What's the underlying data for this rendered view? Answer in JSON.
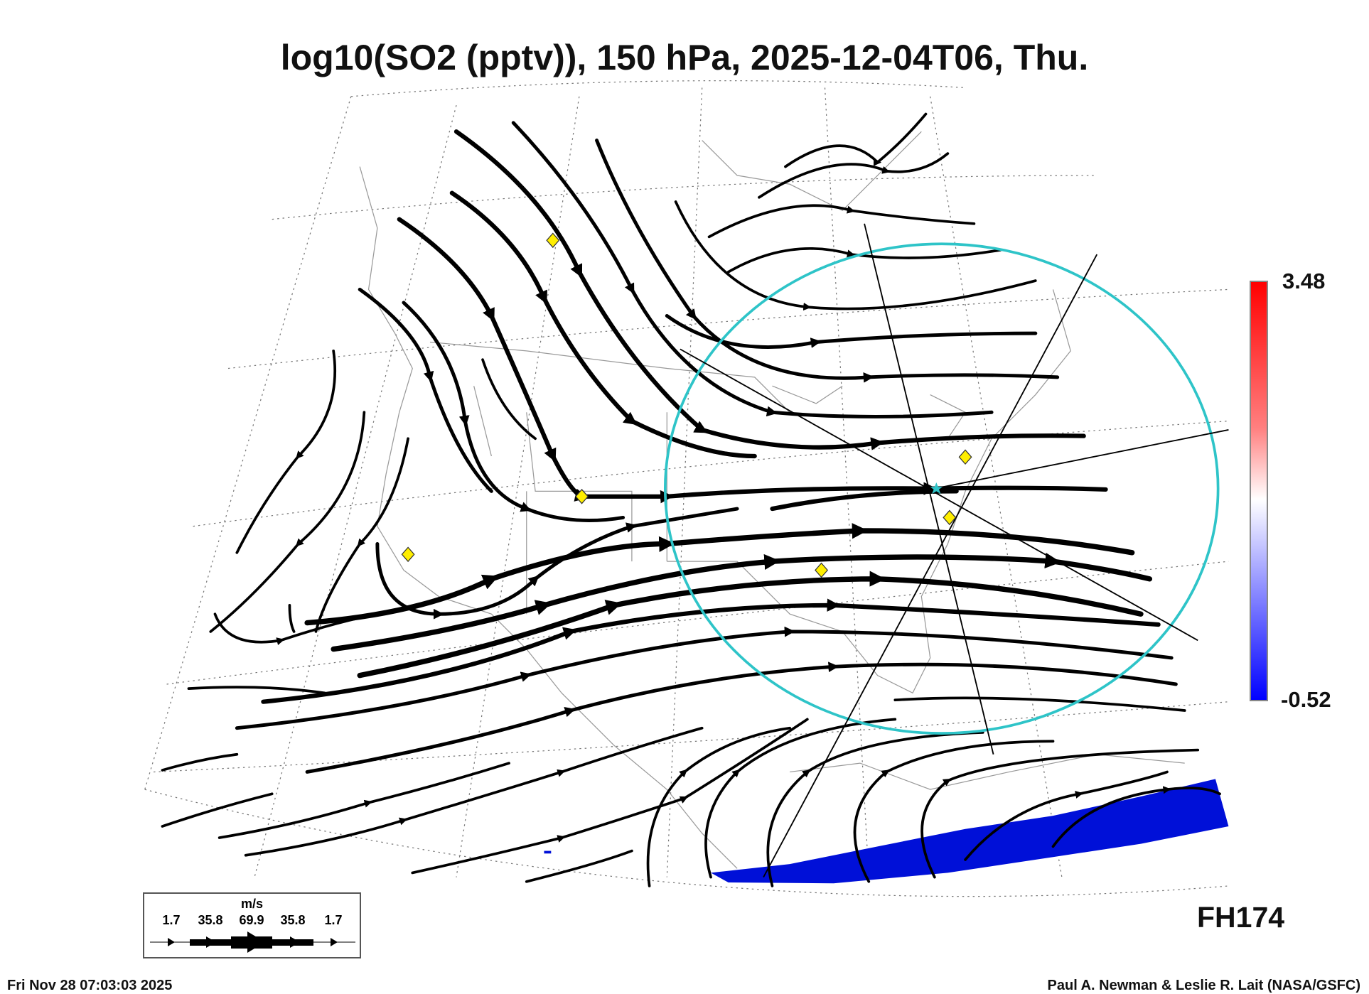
{
  "title": "log10(SO2 (pptv)), 150 hPa, 2025-12-04T06, Thu.",
  "colorbar": {
    "max_label": "3.48",
    "min_label": "-0.52",
    "colors": [
      "#ff0000",
      "#ffffff",
      "#0000ff"
    ]
  },
  "wind_legend": {
    "unit": "m/s",
    "values": [
      "1.7",
      "35.8",
      "69.9",
      "35.8",
      "1.7"
    ]
  },
  "forecast_hour": "FH174",
  "footer": {
    "timestamp": "Fri Nov 28 07:03:03 2025",
    "credit": "Paul A. Newman & Leslie R. Lait (NASA/GSFC)"
  },
  "colors": {
    "circle": "#2ec4c8",
    "marker": "#ffee00",
    "so2_plume": "#0010d8"
  }
}
